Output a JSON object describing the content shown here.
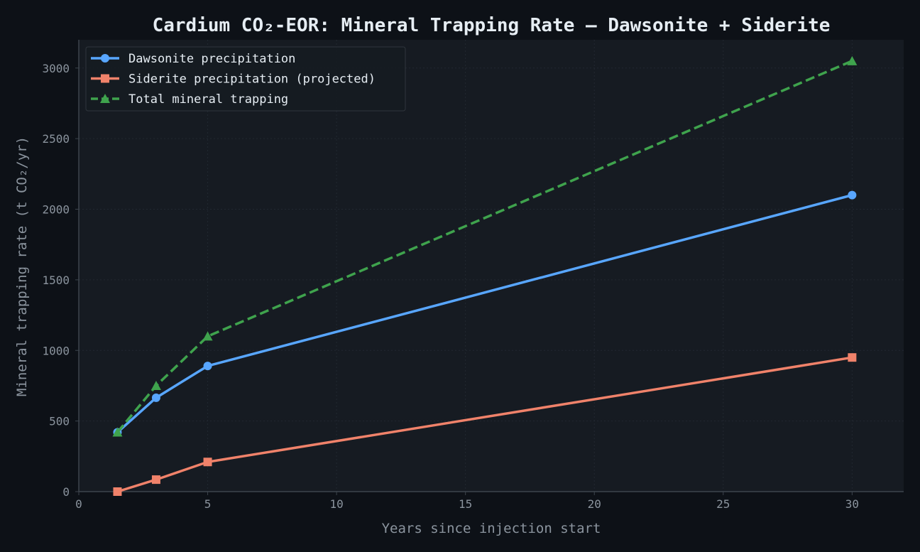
{
  "chart_data": {
    "type": "line",
    "title": "Cardium CO₂-EOR: Mineral Trapping Rate — Dawsonite + Siderite",
    "xlabel": "Years since injection start",
    "ylabel": "Mineral trapping rate (t CO₂/yr)",
    "xlim": [
      0,
      32
    ],
    "ylim": [
      0,
      3200
    ],
    "xticks": [
      0,
      5,
      10,
      15,
      20,
      25,
      30
    ],
    "yticks": [
      0,
      500,
      1000,
      1500,
      2000,
      2500,
      3000
    ],
    "grid": true,
    "legend_position": "top-left",
    "series": [
      {
        "name": "Dawsonite precipitation",
        "color": "#58a6ff",
        "marker": "circle",
        "dash": "solid",
        "x": [
          1.5,
          3,
          5,
          30
        ],
        "y": [
          420,
          665,
          890,
          2100
        ]
      },
      {
        "name": "Siderite precipitation (projected)",
        "color": "#f0826a",
        "marker": "square",
        "dash": "solid",
        "x": [
          1.5,
          3,
          5,
          30
        ],
        "y": [
          0,
          85,
          210,
          950
        ]
      },
      {
        "name": "Total mineral trapping",
        "color": "#3fa34d",
        "marker": "triangle",
        "dash": "dashed",
        "x": [
          1.5,
          3,
          5,
          30
        ],
        "y": [
          420,
          750,
          1100,
          3050
        ]
      }
    ]
  }
}
